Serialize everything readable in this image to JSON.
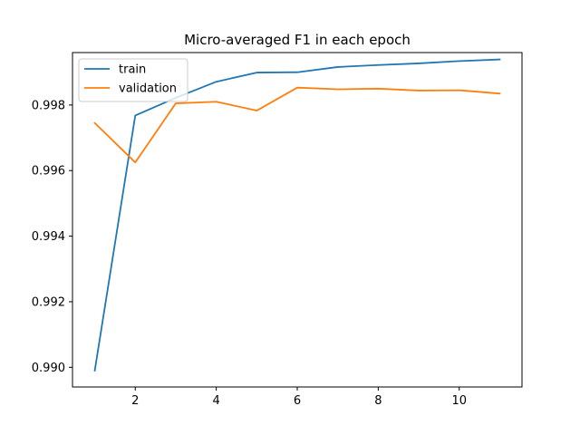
{
  "chart_data": {
    "type": "line",
    "title": "Micro-averaged F1 in each epoch",
    "xlabel": "",
    "ylabel": "",
    "x": [
      1,
      2,
      3,
      4,
      5,
      6,
      7,
      8,
      9,
      10,
      11
    ],
    "xlim": [
      0.45,
      11.55
    ],
    "ylim": [
      0.9894,
      0.9996
    ],
    "xticks": [
      2,
      4,
      6,
      8,
      10
    ],
    "yticks": [
      0.99,
      0.992,
      0.994,
      0.996,
      0.998
    ],
    "ytick_labels": [
      "0.990",
      "0.992",
      "0.994",
      "0.996",
      "0.998"
    ],
    "grid": false,
    "legend_position": "top-left",
    "series": [
      {
        "name": "train",
        "color": "#1f77b4",
        "values": [
          0.9899,
          0.99768,
          0.99822,
          0.99871,
          0.99899,
          0.999,
          0.99916,
          0.99922,
          0.99927,
          0.99934,
          0.99939
        ]
      },
      {
        "name": "validation",
        "color": "#ff7f0e",
        "values": [
          0.99745,
          0.99625,
          0.99805,
          0.9981,
          0.99783,
          0.99853,
          0.99848,
          0.9985,
          0.99844,
          0.99845,
          0.99835
        ]
      }
    ]
  }
}
